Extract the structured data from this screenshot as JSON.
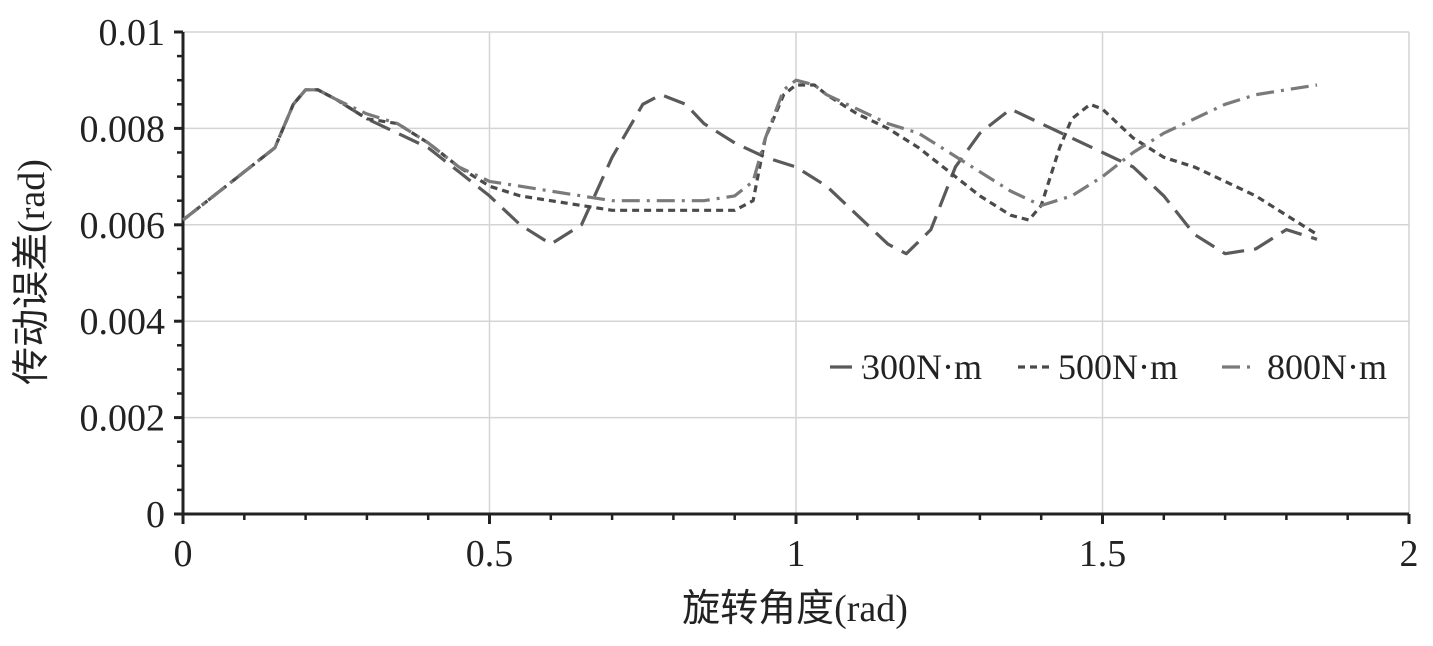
{
  "chart_data": {
    "type": "line",
    "xlabel": "旋转角度(rad)",
    "ylabel": "传动误差(rad)",
    "xlim": [
      0,
      2
    ],
    "ylim": [
      0,
      0.01
    ],
    "xticks": [
      0,
      0.5,
      1,
      1.5,
      2
    ],
    "xtick_labels": [
      "0",
      "0.5",
      "1",
      "1.5",
      "2"
    ],
    "yticks": [
      0,
      0.002,
      0.004,
      0.006,
      0.008,
      0.01
    ],
    "ytick_labels": [
      "0",
      "0.002",
      "0.004",
      "0.006",
      "0.008",
      "0.01"
    ],
    "grid": true,
    "legend_position": "center-right",
    "series": [
      {
        "name": "300N·m",
        "style": "long-dash",
        "color": "#5a5a5a",
        "x": [
          0,
          0.05,
          0.1,
          0.15,
          0.18,
          0.2,
          0.22,
          0.25,
          0.3,
          0.35,
          0.4,
          0.45,
          0.5,
          0.55,
          0.6,
          0.65,
          0.7,
          0.75,
          0.78,
          0.82,
          0.85,
          0.9,
          0.95,
          1.0,
          1.05,
          1.1,
          1.15,
          1.18,
          1.22,
          1.26,
          1.3,
          1.35,
          1.4,
          1.45,
          1.5,
          1.55,
          1.6,
          1.65,
          1.7,
          1.75,
          1.8,
          1.85
        ],
        "y": [
          0.0061,
          0.0066,
          0.0071,
          0.0076,
          0.0085,
          0.0088,
          0.0088,
          0.0086,
          0.0082,
          0.0079,
          0.0076,
          0.0071,
          0.0066,
          0.006,
          0.0056,
          0.006,
          0.0074,
          0.0085,
          0.0087,
          0.0085,
          0.0081,
          0.0077,
          0.0074,
          0.0072,
          0.0068,
          0.0062,
          0.0056,
          0.0054,
          0.0059,
          0.0072,
          0.0079,
          0.0084,
          0.0081,
          0.0078,
          0.0075,
          0.0072,
          0.0066,
          0.0058,
          0.0054,
          0.0055,
          0.0059,
          0.0057
        ]
      },
      {
        "name": "500N·m",
        "style": "short-dash",
        "color": "#4a4a4a",
        "x": [
          0,
          0.05,
          0.1,
          0.15,
          0.18,
          0.2,
          0.22,
          0.25,
          0.3,
          0.35,
          0.4,
          0.45,
          0.5,
          0.55,
          0.6,
          0.65,
          0.7,
          0.75,
          0.8,
          0.85,
          0.9,
          0.93,
          0.95,
          0.98,
          1.0,
          1.03,
          1.05,
          1.1,
          1.15,
          1.2,
          1.25,
          1.3,
          1.35,
          1.38,
          1.4,
          1.43,
          1.45,
          1.48,
          1.5,
          1.55,
          1.6,
          1.65,
          1.7,
          1.75,
          1.8,
          1.85
        ],
        "y": [
          0.0061,
          0.0066,
          0.0071,
          0.0076,
          0.0085,
          0.0088,
          0.0088,
          0.0086,
          0.0082,
          0.0081,
          0.0077,
          0.0072,
          0.0068,
          0.0066,
          0.0065,
          0.0064,
          0.0063,
          0.0063,
          0.0063,
          0.0063,
          0.0063,
          0.0065,
          0.0078,
          0.0087,
          0.0089,
          0.0089,
          0.0087,
          0.0083,
          0.008,
          0.0076,
          0.0071,
          0.0066,
          0.0062,
          0.0061,
          0.0064,
          0.0076,
          0.0082,
          0.0085,
          0.0084,
          0.0078,
          0.0074,
          0.0072,
          0.0069,
          0.0066,
          0.0062,
          0.0058
        ]
      },
      {
        "name": "800N·m",
        "style": "dash-dot",
        "color": "#7a7a7a",
        "x": [
          0,
          0.05,
          0.1,
          0.15,
          0.18,
          0.2,
          0.22,
          0.25,
          0.3,
          0.35,
          0.4,
          0.45,
          0.5,
          0.55,
          0.6,
          0.65,
          0.7,
          0.75,
          0.8,
          0.85,
          0.9,
          0.93,
          0.95,
          0.98,
          1.0,
          1.03,
          1.05,
          1.1,
          1.15,
          1.2,
          1.25,
          1.3,
          1.35,
          1.4,
          1.45,
          1.5,
          1.55,
          1.6,
          1.65,
          1.7,
          1.75,
          1.8,
          1.85
        ],
        "y": [
          0.0061,
          0.0066,
          0.0071,
          0.0076,
          0.0085,
          0.0088,
          0.0088,
          0.0086,
          0.0083,
          0.0081,
          0.0077,
          0.0072,
          0.0069,
          0.0068,
          0.0067,
          0.0066,
          0.0065,
          0.0065,
          0.0065,
          0.0065,
          0.0066,
          0.0069,
          0.0078,
          0.0088,
          0.009,
          0.0089,
          0.0087,
          0.0084,
          0.0081,
          0.0079,
          0.0075,
          0.0071,
          0.0067,
          0.0064,
          0.0066,
          0.007,
          0.0075,
          0.0079,
          0.0082,
          0.0085,
          0.0087,
          0.0088,
          0.0089
        ]
      }
    ]
  }
}
